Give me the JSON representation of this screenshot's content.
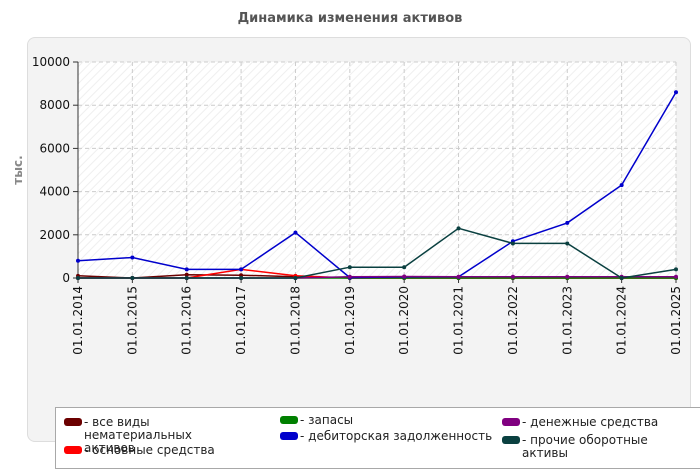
{
  "title": "Динамика изменения активов",
  "chart_data": {
    "type": "line",
    "title": "Динамика изменения активов",
    "ylabel": "тыс.",
    "xlabel": "",
    "ylim": [
      0,
      10000
    ],
    "yticks": [
      0,
      2000,
      4000,
      6000,
      8000,
      10000
    ],
    "grid": true,
    "legend_position": "bottom",
    "categories": [
      "01.01.2014",
      "01.01.2015",
      "01.01.2016",
      "01.01.2017",
      "01.01.2018",
      "01.01.2019",
      "01.01.2020",
      "01.01.2021",
      "01.01.2022",
      "01.01.2023",
      "01.01.2024",
      "01.01.2025"
    ],
    "series": [
      {
        "name": "все виды нематериальных активов",
        "color": "#6b0000",
        "values": [
          100,
          0,
          150,
          130,
          60,
          0,
          0,
          0,
          0,
          0,
          0,
          0
        ]
      },
      {
        "name": "основные средства",
        "color": "#ff0000",
        "values": [
          0,
          0,
          0,
          400,
          100,
          0,
          0,
          0,
          0,
          0,
          0,
          0
        ]
      },
      {
        "name": "запасы",
        "color": "#008000",
        "values": [
          0,
          0,
          0,
          0,
          0,
          0,
          0,
          0,
          0,
          0,
          0,
          0
        ]
      },
      {
        "name": "дебиторская задолженность",
        "color": "#0000cc",
        "values": [
          800,
          950,
          400,
          400,
          2100,
          20,
          50,
          50,
          1700,
          2550,
          4300,
          8600
        ]
      },
      {
        "name": "денежные средства",
        "color": "#800080",
        "values": [
          0,
          0,
          0,
          0,
          0,
          60,
          70,
          60,
          60,
          60,
          60,
          60
        ]
      },
      {
        "name": "прочие оборотные активы",
        "color": "#0a4040",
        "values": [
          0,
          0,
          0,
          0,
          0,
          500,
          500,
          2300,
          1600,
          1600,
          0,
          400
        ]
      }
    ]
  }
}
